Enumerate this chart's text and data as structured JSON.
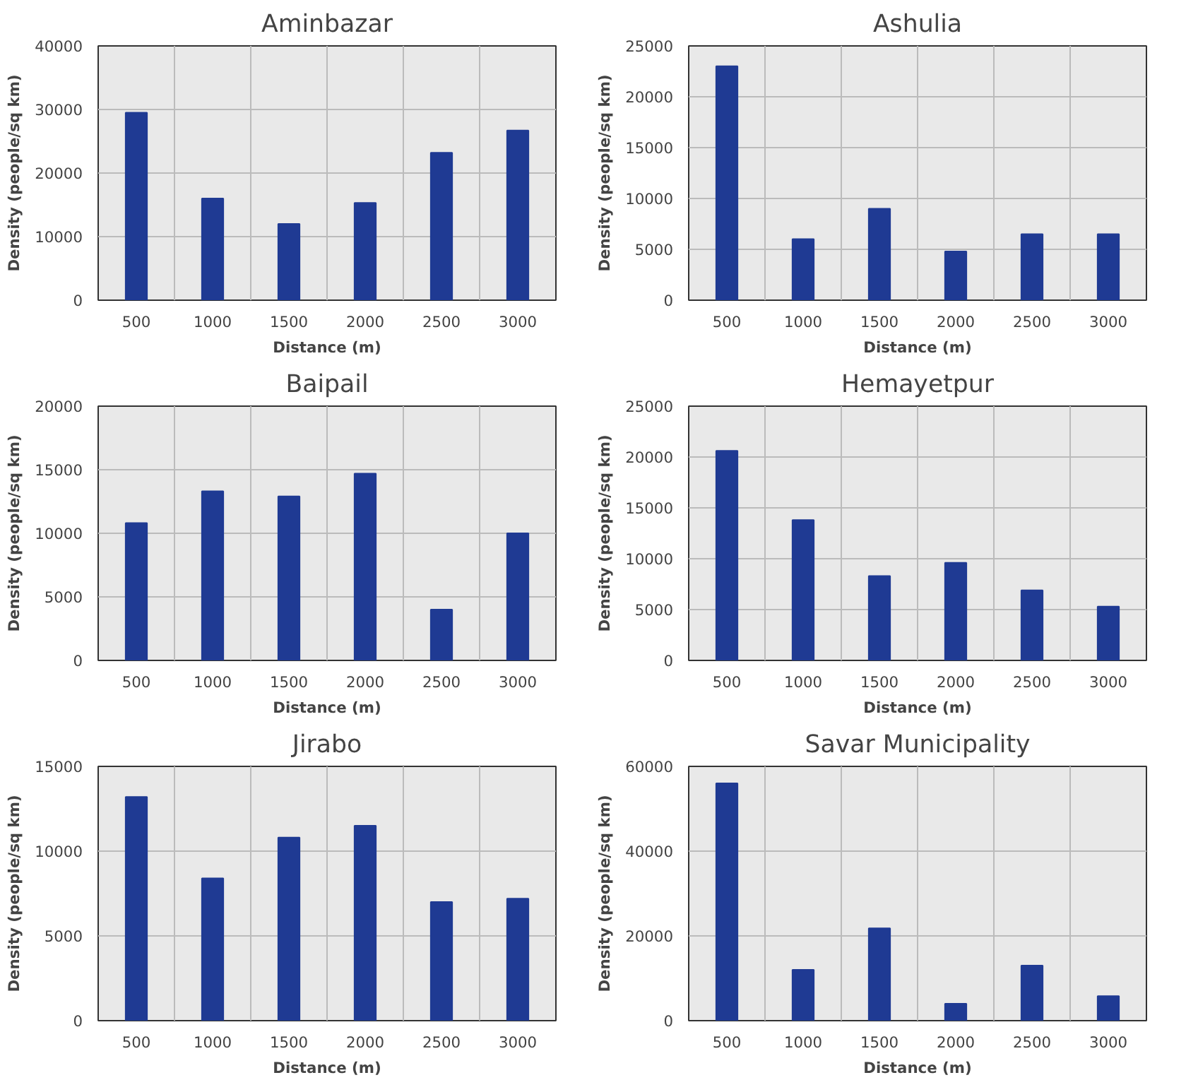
{
  "chart_data": [
    {
      "type": "bar",
      "title": "Aminbazar",
      "xlabel": "Distance (m)",
      "ylabel": "Density (people/sq km)",
      "categories": [
        "500",
        "1000",
        "1500",
        "2000",
        "2500",
        "3000"
      ],
      "values": [
        29500,
        16000,
        12000,
        15300,
        23200,
        26700
      ],
      "color": "#1f3a93",
      "ylim": [
        0,
        40000
      ],
      "yticks": [
        0,
        10000,
        20000,
        30000,
        40000
      ],
      "grid": true
    },
    {
      "type": "bar",
      "title": "Ashulia",
      "xlabel": "Distance (m)",
      "ylabel": "Density (people/sq km)",
      "categories": [
        "500",
        "1000",
        "1500",
        "2000",
        "2500",
        "3000"
      ],
      "values": [
        23000,
        6000,
        9000,
        4800,
        6500,
        6500
      ],
      "color": "#1f3a93",
      "ylim": [
        0,
        25000
      ],
      "yticks": [
        0,
        5000,
        10000,
        15000,
        20000,
        25000
      ],
      "grid": true
    },
    {
      "type": "bar",
      "title": "Baipail",
      "xlabel": "Distance (m)",
      "ylabel": "Density (people/sq km)",
      "categories": [
        "500",
        "1000",
        "1500",
        "2000",
        "2500",
        "3000"
      ],
      "values": [
        10800,
        13300,
        12900,
        14700,
        4000,
        10000
      ],
      "color": "#1f3a93",
      "ylim": [
        0,
        20000
      ],
      "yticks": [
        0,
        5000,
        10000,
        15000,
        20000
      ],
      "grid": true
    },
    {
      "type": "bar",
      "title": "Hemayetpur",
      "xlabel": "Distance (m)",
      "ylabel": "Density (people/sq km)",
      "categories": [
        "500",
        "1000",
        "1500",
        "2000",
        "2500",
        "3000"
      ],
      "values": [
        20600,
        13800,
        8300,
        9600,
        6900,
        5300
      ],
      "color": "#1f3a93",
      "ylim": [
        0,
        25000
      ],
      "yticks": [
        0,
        5000,
        10000,
        15000,
        20000,
        25000
      ],
      "grid": true
    },
    {
      "type": "bar",
      "title": "Jirabo",
      "xlabel": "Distance (m)",
      "ylabel": "Density (people/sq km)",
      "categories": [
        "500",
        "1000",
        "1500",
        "2000",
        "2500",
        "3000"
      ],
      "values": [
        13200,
        8400,
        10800,
        11500,
        7000,
        7200
      ],
      "color": "#1f3a93",
      "ylim": [
        0,
        15000
      ],
      "yticks": [
        0,
        5000,
        10000,
        15000
      ],
      "grid": true
    },
    {
      "type": "bar",
      "title": "Savar Municipality",
      "xlabel": "Distance (m)",
      "ylabel": "Density (people/sq km)",
      "categories": [
        "500",
        "1000",
        "1500",
        "2000",
        "2500",
        "3000"
      ],
      "values": [
        56000,
        12000,
        21800,
        4000,
        13000,
        5800
      ],
      "color": "#1f3a93",
      "ylim": [
        0,
        60000
      ],
      "yticks": [
        0,
        20000,
        40000,
        60000
      ],
      "grid": true
    }
  ]
}
